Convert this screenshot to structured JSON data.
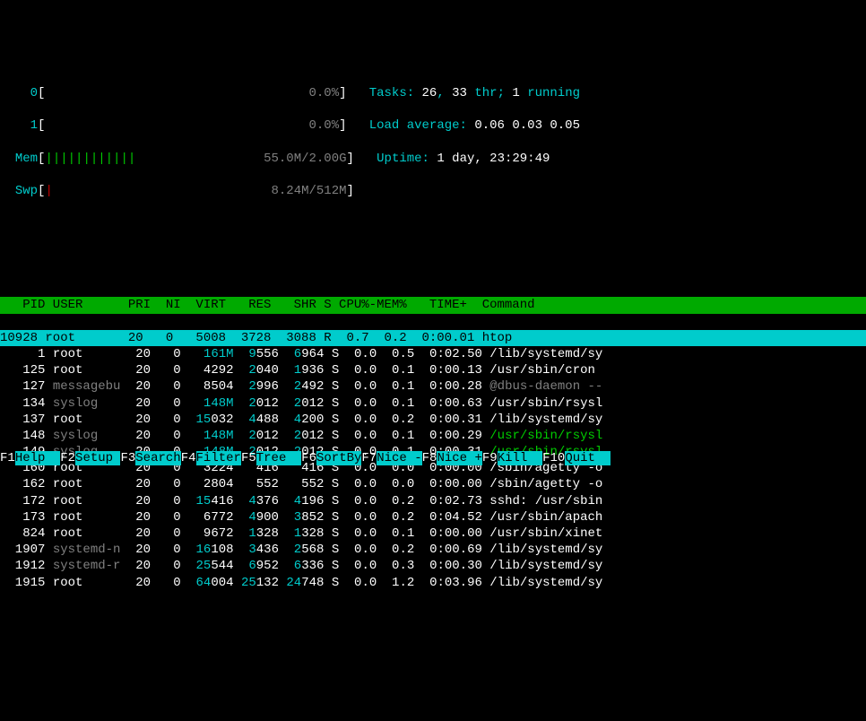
{
  "meters": {
    "cpu0": {
      "label": "0",
      "bar": "[",
      "end": "]",
      "pct": "0.0%"
    },
    "cpu1": {
      "label": "1",
      "bar": "[",
      "end": "]",
      "pct": "0.0%"
    },
    "mem": {
      "label": "Mem",
      "bar_open": "[",
      "bar_fill": "||||||||||||",
      "bar_close": "]",
      "text": "55.0M/2.00G"
    },
    "swp": {
      "label": "Swp",
      "bar_open": "[",
      "bar_fill": "|",
      "bar_close": "]",
      "text": "8.24M/512M"
    }
  },
  "stats": {
    "tasks_label": "Tasks: ",
    "tasks_val": "26",
    "tasks_sep1": ", ",
    "thr_val": "33",
    "thr_txt": " thr; ",
    "running_val": "1",
    "running_txt": " running",
    "load_label": "Load average: ",
    "load1": "0.06 ",
    "load2": "0.03 ",
    "load3": "0.05",
    "uptime_label": "Uptime: ",
    "uptime_val": "1 day, 23:29:49"
  },
  "columns": "   PID USER      PRI  NI  VIRT   RES   SHR S CPU%-MEM%   TIME+  Command          ",
  "rows": [
    {
      "sel": true,
      "pid": "10928",
      "user": "root     ",
      "pri": "20",
      "ni": "0",
      "virt": "  5008",
      "res": " 3728",
      "shr": " 3088",
      "s": "R",
      "cpu": "0.7",
      "mem": "0.2",
      "time": "0:00.01",
      "cmd": "htop",
      "cmd_class": ""
    },
    {
      "pid": "    1",
      "user": "root     ",
      "pri": "20",
      "ni": "0",
      "virt_hi": "  161M",
      "res_hi": "9",
      "res": "556",
      "shr_hi": "6",
      "shr": "964",
      "s": "S",
      "cpu": "0.0",
      "mem": "0.5",
      "time": "0:02.50",
      "cmd": "/lib/systemd/sy",
      "cmd_class": "cmd-white"
    },
    {
      "pid": "  125",
      "user": "root     ",
      "pri": "20",
      "ni": "0",
      "virt": "  4292",
      "res_hi": "2",
      "res": "040",
      "shr_hi": "1",
      "shr": "936",
      "s": "S",
      "cpu": "0.0",
      "mem": "0.1",
      "time": "0:00.13",
      "cmd": "/usr/sbin/cron ",
      "cmd_class": "cmd-white"
    },
    {
      "pid": "  127",
      "user": "messagebu",
      "user_grey": true,
      "pri": "20",
      "ni": "0",
      "virt": "  8504",
      "res_hi": "2",
      "res": "996",
      "shr_hi": "2",
      "shr": "492",
      "s": "S",
      "cpu": "0.0",
      "mem": "0.1",
      "time": "0:00.28",
      "cmd": "@dbus-daemon --",
      "cmd_class": "cmd-grey"
    },
    {
      "pid": "  134",
      "user": "syslog   ",
      "user_grey": true,
      "pri": "20",
      "ni": "0",
      "virt_hi": "  148M",
      "res_hi": "2",
      "res": "012",
      "shr_hi": "2",
      "shr": "012",
      "s": "S",
      "cpu": "0.0",
      "mem": "0.1",
      "time": "0:00.63",
      "cmd": "/usr/sbin/rsysl",
      "cmd_class": "cmd-white"
    },
    {
      "pid": "  137",
      "user": "root     ",
      "pri": "20",
      "ni": "0",
      "virt_hi": " 15",
      "virt": "032",
      "res_hi": "4",
      "res": "488",
      "shr_hi": "4",
      "shr": "200",
      "s": "S",
      "cpu": "0.0",
      "mem": "0.2",
      "time": "0:00.31",
      "cmd": "/lib/systemd/sy",
      "cmd_class": "cmd-white"
    },
    {
      "pid": "  148",
      "user": "syslog   ",
      "user_grey": true,
      "pri": "20",
      "ni": "0",
      "virt_hi": "  148M",
      "res_hi": "2",
      "res": "012",
      "shr_hi": "2",
      "shr": "012",
      "s": "S",
      "cpu": "0.0",
      "mem": "0.1",
      "time": "0:00.29",
      "cmd": "/usr/sbin/rsysl",
      "cmd_class": "cmd-green"
    },
    {
      "pid": "  149",
      "user": "syslog   ",
      "user_grey": true,
      "pri": "20",
      "ni": "0",
      "virt_hi": "  148M",
      "res_hi": "2",
      "res": "012",
      "shr_hi": "2",
      "shr": "012",
      "s": "S",
      "cpu": "0.0",
      "mem": "0.1",
      "time": "0:00.31",
      "cmd": "/usr/sbin/rsysl",
      "cmd_class": "cmd-green"
    },
    {
      "pid": "  160",
      "user": "root     ",
      "pri": "20",
      "ni": "0",
      "virt": "  3224",
      "res": "  416",
      "shr": "  416",
      "s": "S",
      "cpu": "0.0",
      "mem": "0.0",
      "time": "0:00.00",
      "cmd": "/sbin/agetty -o",
      "cmd_class": "cmd-white"
    },
    {
      "pid": "  162",
      "user": "root     ",
      "pri": "20",
      "ni": "0",
      "virt": "  2804",
      "res": "  552",
      "shr": "  552",
      "s": "S",
      "cpu": "0.0",
      "mem": "0.0",
      "time": "0:00.00",
      "cmd": "/sbin/agetty -o",
      "cmd_class": "cmd-white"
    },
    {
      "pid": "  172",
      "user": "root     ",
      "pri": "20",
      "ni": "0",
      "virt_hi": " 15",
      "virt": "416",
      "res_hi": "4",
      "res": "376",
      "shr_hi": "4",
      "shr": "196",
      "s": "S",
      "cpu": "0.0",
      "mem": "0.2",
      "time": "0:02.73",
      "cmd": "sshd: /usr/sbin",
      "cmd_class": "cmd-white"
    },
    {
      "pid": "  173",
      "user": "root     ",
      "pri": "20",
      "ni": "0",
      "virt": "  6772",
      "res_hi": "4",
      "res": "900",
      "shr_hi": "3",
      "shr": "852",
      "s": "S",
      "cpu": "0.0",
      "mem": "0.2",
      "time": "0:04.52",
      "cmd": "/usr/sbin/apach",
      "cmd_class": "cmd-white"
    },
    {
      "pid": "  824",
      "user": "root     ",
      "pri": "20",
      "ni": "0",
      "virt": "  9672",
      "res_hi": "1",
      "res": "328",
      "shr_hi": "1",
      "shr": "328",
      "s": "S",
      "cpu": "0.0",
      "mem": "0.1",
      "time": "0:00.00",
      "cmd": "/usr/sbin/xinet",
      "cmd_class": "cmd-white"
    },
    {
      "pid": " 1907",
      "user": "systemd-n",
      "user_grey": true,
      "pri": "20",
      "ni": "0",
      "virt_hi": " 16",
      "virt": "108",
      "res_hi": "3",
      "res": "436",
      "shr_hi": "2",
      "shr": "568",
      "s": "S",
      "cpu": "0.0",
      "mem": "0.2",
      "time": "0:00.69",
      "cmd": "/lib/systemd/sy",
      "cmd_class": "cmd-white"
    },
    {
      "pid": " 1912",
      "user": "systemd-r",
      "user_grey": true,
      "pri": "20",
      "ni": "0",
      "virt_hi": " 25",
      "virt": "544",
      "res_hi": "6",
      "res": "952",
      "shr_hi": "6",
      "shr": "336",
      "s": "S",
      "cpu": "0.0",
      "mem": "0.3",
      "time": "0:00.30",
      "cmd": "/lib/systemd/sy",
      "cmd_class": "cmd-white"
    },
    {
      "pid": " 1915",
      "user": "root     ",
      "pri": "20",
      "ni": "0",
      "virt_hi": " 64",
      "virt": "004",
      "res_hi": "25",
      "res": "132",
      "shr_hi": "24",
      "shr": "748",
      "s": "S",
      "cpu": "0.0",
      "mem": "1.2",
      "time": "0:03.96",
      "cmd": "/lib/systemd/sy",
      "cmd_class": "cmd-white"
    }
  ],
  "footer": [
    {
      "k": "F1",
      "l": "Help  "
    },
    {
      "k": "F2",
      "l": "Setup "
    },
    {
      "k": "F3",
      "l": "Search"
    },
    {
      "k": "F4",
      "l": "Filter"
    },
    {
      "k": "F5",
      "l": "Tree  "
    },
    {
      "k": "F6",
      "l": "SortBy"
    },
    {
      "k": "F7",
      "l": "Nice -"
    },
    {
      "k": "F8",
      "l": "Nice +"
    },
    {
      "k": "F9",
      "l": "Kill  "
    },
    {
      "k": "F10",
      "l": "Quit  "
    }
  ],
  "colors": {
    "bg": "#000000",
    "fg": "#c0c0c0",
    "cyan": "#00cccc",
    "green": "#00cc00",
    "grey": "#808080",
    "white": "#ffffff",
    "header_bg": "#00aa00",
    "sel_bg": "#00cccc"
  }
}
